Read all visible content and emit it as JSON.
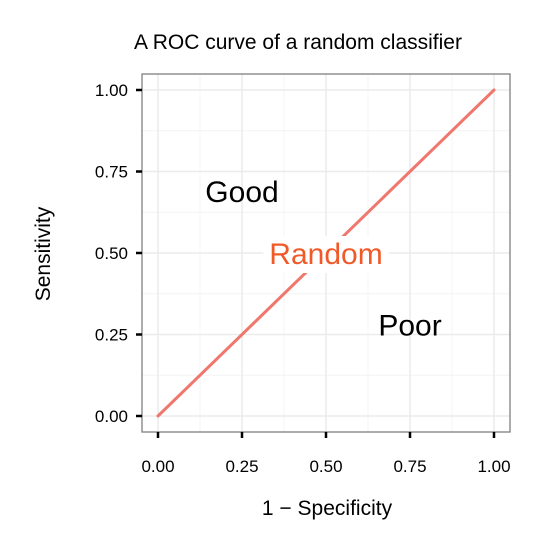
{
  "chart_data": {
    "type": "line",
    "title": "A ROC curve of a random classifier",
    "xlabel": "1 − Specificity",
    "ylabel": "Sensitivity",
    "xlim": [
      0,
      1
    ],
    "ylim": [
      0,
      1
    ],
    "x_ticks": [
      "0.00",
      "0.25",
      "0.50",
      "0.75",
      "1.00"
    ],
    "y_ticks": [
      "0.00",
      "0.25",
      "0.50",
      "0.75",
      "1.00"
    ],
    "grid": true,
    "series": [
      {
        "x": [
          0,
          1
        ],
        "y": [
          0,
          1
        ],
        "color": "#F0776E"
      }
    ],
    "annotations": [
      {
        "text": "Good",
        "x": 0.25,
        "y": 0.69,
        "color": "#000000"
      },
      {
        "text": "Random",
        "x": 0.5,
        "y": 0.5,
        "color": "#F05A28",
        "background": "#ffffff"
      },
      {
        "text": "Poor",
        "x": 0.75,
        "y": 0.28,
        "color": "#000000"
      }
    ]
  }
}
